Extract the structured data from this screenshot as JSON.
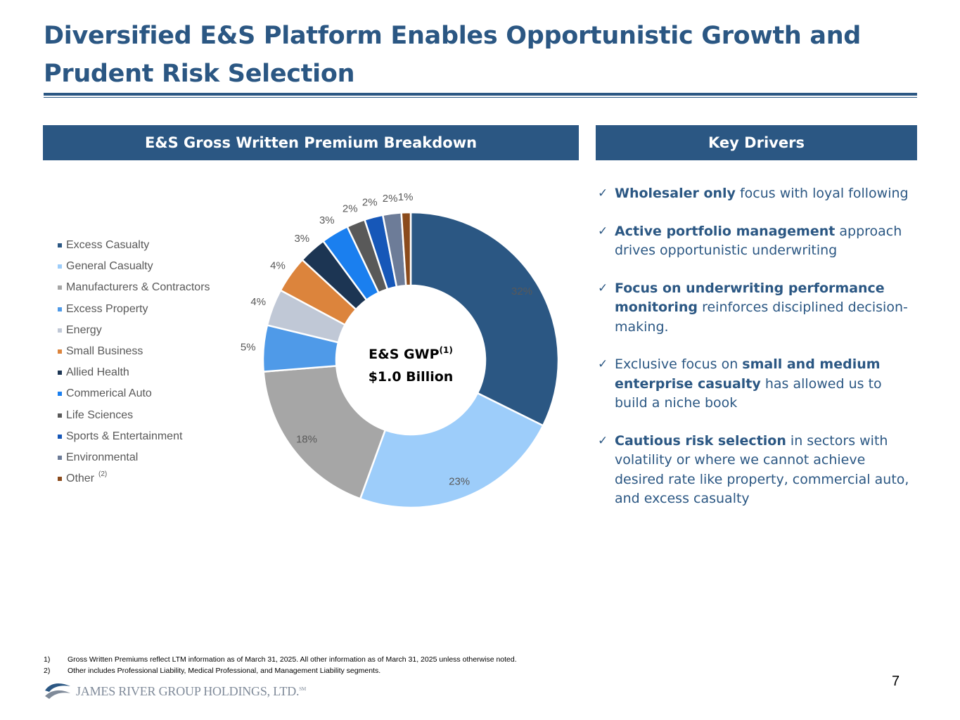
{
  "title": "Diversified E&S Platform Enables Opportunistic Growth and Prudent Risk Selection",
  "left_panel": {
    "header": "E&S Gross Written Premium Breakdown"
  },
  "right_panel": {
    "header": "Key Drivers"
  },
  "chart_data": {
    "type": "pie",
    "donut": true,
    "center_label_line1": "E&S GWP",
    "center_label_sup": "(1)",
    "center_label_line2": "$1.0 Billion",
    "legend_position": "left",
    "other_label_sup": "(2)",
    "categories": [
      "Excess Casualty",
      "General Casualty",
      "Manufacturers & Contractors",
      "Excess Property",
      "Energy",
      "Small Business",
      "Allied Health",
      "Commerical Auto",
      "Life Sciences",
      "Sports & Entertainment",
      "Environmental",
      "Other"
    ],
    "values": [
      32,
      23,
      18,
      5,
      4,
      4,
      3,
      3,
      2,
      2,
      2,
      1
    ],
    "labels": [
      "32%",
      "23%",
      "18%",
      "5%",
      "4%",
      "4%",
      "3%",
      "3%",
      "2%",
      "2%",
      "2%",
      "1%"
    ],
    "colors": [
      "#2b5783",
      "#9dcdfa",
      "#a6a6a6",
      "#4f9ae8",
      "#c0c8d6",
      "#dc843c",
      "#1c3553",
      "#1a7fef",
      "#595959",
      "#1657b8",
      "#6d7c98",
      "#8b4b1c"
    ]
  },
  "drivers": [
    {
      "bold": "Wholesaler only",
      "rest": " focus with loyal following"
    },
    {
      "bold": "Active portfolio management",
      "rest": " approach drives opportunistic underwriting"
    },
    {
      "bold": "Focus on underwriting performance monitoring",
      "rest": " reinforces disciplined decision-making."
    },
    {
      "pre": "Exclusive focus on ",
      "bold": "small and medium enterprise casualty",
      "rest": " has allowed us to build a niche book"
    },
    {
      "bold": "Cautious risk selection",
      "rest": " in sectors with volatility or where we cannot achieve desired rate like property, commercial auto, and excess casualty"
    }
  ],
  "check_glyph": "✓",
  "footnotes": [
    {
      "num": "1)",
      "text": "Gross Written Premiums reflect LTM information as of March 31, 2025. All other information as of March 31, 2025 unless otherwise noted."
    },
    {
      "num": "2)",
      "text": "Other includes Professional Liability, Medical Professional, and Management Liability segments."
    }
  ],
  "page_number": "7",
  "logo": {
    "text": "JAMES RIVER GROUP HOLDINGS, LTD.",
    "tm": "SM"
  }
}
